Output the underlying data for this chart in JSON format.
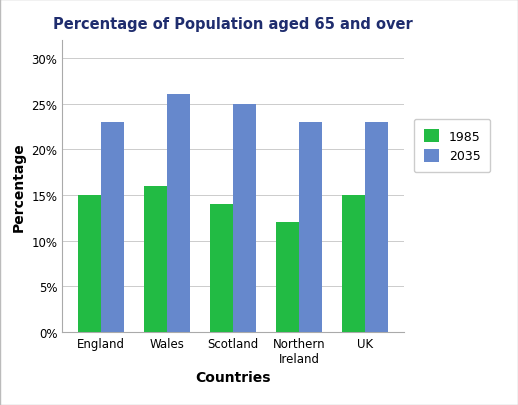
{
  "title": "Percentage of Population aged 65 and over",
  "categories": [
    "England",
    "Wales",
    "Scotland",
    "Northern\nIreland",
    "UK"
  ],
  "values_1985": [
    15,
    16,
    14,
    12,
    15
  ],
  "values_2035": [
    23,
    26,
    25,
    23,
    23
  ],
  "color_1985": "#22bb44",
  "color_2035": "#6688cc",
  "xlabel": "Countries",
  "ylabel": "Percentage",
  "legend_labels": [
    "1985",
    "2035"
  ],
  "yticks": [
    0,
    5,
    10,
    15,
    20,
    25,
    30
  ],
  "ytick_labels": [
    "0%",
    "5%",
    "10%",
    "15%",
    "20%",
    "25%",
    "30%"
  ],
  "ylim": [
    0,
    32
  ],
  "bar_width": 0.35,
  "title_fontsize": 10.5,
  "label_fontsize": 10,
  "tick_fontsize": 8.5,
  "legend_fontsize": 9,
  "background_color": "#ffffff",
  "border_color": "#aaaaaa",
  "title_color": "#1f2d6e"
}
